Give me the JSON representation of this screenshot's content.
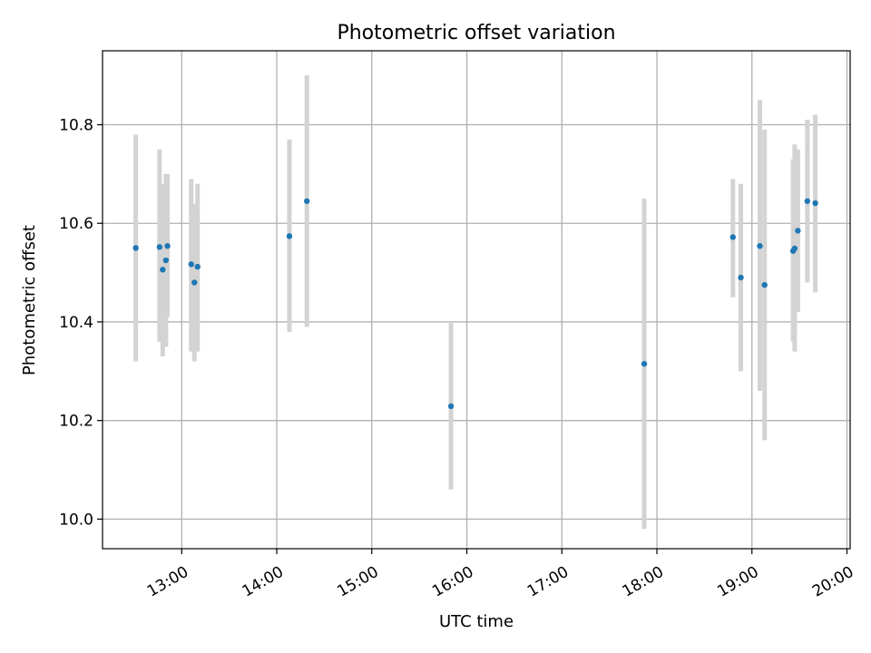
{
  "chart_data": {
    "type": "scatter",
    "title": "Photometric offset variation",
    "xlabel": "UTC time",
    "ylabel": "Photometric offset",
    "grid": true,
    "xlim": [
      "12:10",
      "20:02"
    ],
    "ylim": [
      9.94,
      10.95
    ],
    "x_ticks": [
      "13:00",
      "14:00",
      "15:00",
      "16:00",
      "17:00",
      "18:00",
      "19:00",
      "20:00"
    ],
    "y_ticks": [
      "10.0",
      "10.2",
      "10.4",
      "10.6",
      "10.8"
    ],
    "colors": {
      "points": "#1f77b4",
      "error_bars": "#d3d3d3",
      "grid": "#b0b0b0"
    },
    "points": [
      {
        "x": "12:31",
        "y": 10.55,
        "err_low": 10.32,
        "err_high": 10.78
      },
      {
        "x": "12:46",
        "y": 10.552,
        "err_low": 10.36,
        "err_high": 10.75
      },
      {
        "x": "12:48",
        "y": 10.506,
        "err_low": 10.33,
        "err_high": 10.68
      },
      {
        "x": "12:50",
        "y": 10.525,
        "err_low": 10.35,
        "err_high": 10.7
      },
      {
        "x": "12:51",
        "y": 10.554,
        "err_low": 10.41,
        "err_high": 10.7
      },
      {
        "x": "13:06",
        "y": 10.517,
        "err_low": 10.34,
        "err_high": 10.69
      },
      {
        "x": "13:08",
        "y": 10.48,
        "err_low": 10.32,
        "err_high": 10.64
      },
      {
        "x": "13:10",
        "y": 10.512,
        "err_low": 10.34,
        "err_high": 10.68
      },
      {
        "x": "14:08",
        "y": 10.574,
        "err_low": 10.38,
        "err_high": 10.77
      },
      {
        "x": "14:19",
        "y": 10.645,
        "err_low": 10.39,
        "err_high": 10.9
      },
      {
        "x": "15:50",
        "y": 10.229,
        "err_low": 10.06,
        "err_high": 10.4
      },
      {
        "x": "17:52",
        "y": 10.315,
        "err_low": 9.98,
        "err_high": 10.65
      },
      {
        "x": "18:48",
        "y": 10.572,
        "err_low": 10.45,
        "err_high": 10.69
      },
      {
        "x": "18:53",
        "y": 10.49,
        "err_low": 10.3,
        "err_high": 10.68
      },
      {
        "x": "19:05",
        "y": 10.554,
        "err_low": 10.26,
        "err_high": 10.85
      },
      {
        "x": "19:08",
        "y": 10.475,
        "err_low": 10.16,
        "err_high": 10.79
      },
      {
        "x": "19:26",
        "y": 10.544,
        "err_low": 10.36,
        "err_high": 10.73
      },
      {
        "x": "19:27",
        "y": 10.549,
        "err_low": 10.34,
        "err_high": 10.76
      },
      {
        "x": "19:29",
        "y": 10.585,
        "err_low": 10.42,
        "err_high": 10.75
      },
      {
        "x": "19:35",
        "y": 10.645,
        "err_low": 10.48,
        "err_high": 10.81
      },
      {
        "x": "19:40",
        "y": 10.641,
        "err_low": 10.46,
        "err_high": 10.82
      }
    ]
  }
}
